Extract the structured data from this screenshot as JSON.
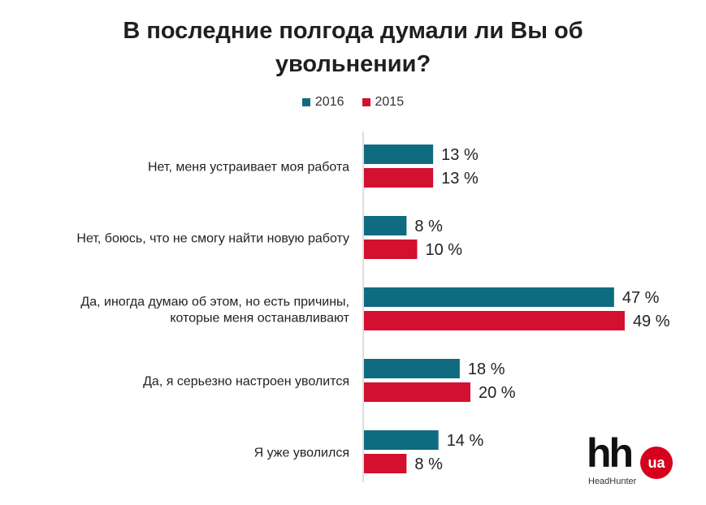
{
  "title_lines": [
    "В последние полгода думали ли Вы об",
    "увольнении?"
  ],
  "colors": {
    "s2016": "#0f6b80",
    "s2015": "#d3102f",
    "axis": "#bfbfbf"
  },
  "logo": {
    "mark": "hh",
    "badge": "ua",
    "sub": "HeadHunter"
  },
  "chart_data": {
    "type": "bar",
    "orientation": "horizontal",
    "title": "В последние полгода думали ли Вы об увольнении?",
    "categories": [
      "Нет, меня устраивает моя работа",
      "Нет, боюсь, что не смогу найти новую работу",
      "Да, иногда думаю об этом, но есть причины, которые меня останавливают",
      "Да, я серьезно настроен уволится",
      "Я уже уволился"
    ],
    "category_lines": [
      [
        "Нет, меня устраивает моя работа"
      ],
      [
        "Нет, боюсь, что не смогу найти новую работу"
      ],
      [
        "Да, иногда думаю об этом, но есть причины,",
        "которые меня останавливают"
      ],
      [
        "Да, я серьезно настроен уволится"
      ],
      [
        "Я уже уволился"
      ]
    ],
    "series": [
      {
        "name": "2016",
        "values": [
          13,
          8,
          47,
          18,
          14
        ],
        "labels": [
          "13 %",
          "8 %",
          "47 %",
          "18 %",
          "14 %"
        ]
      },
      {
        "name": "2015",
        "values": [
          13,
          10,
          49,
          20,
          8
        ],
        "labels": [
          "13 %",
          "10 %",
          "49 %",
          "20 %",
          "8 %"
        ]
      }
    ],
    "xlim": [
      0,
      50
    ],
    "legend": "top",
    "grid": false,
    "xlabel": "",
    "ylabel": ""
  }
}
